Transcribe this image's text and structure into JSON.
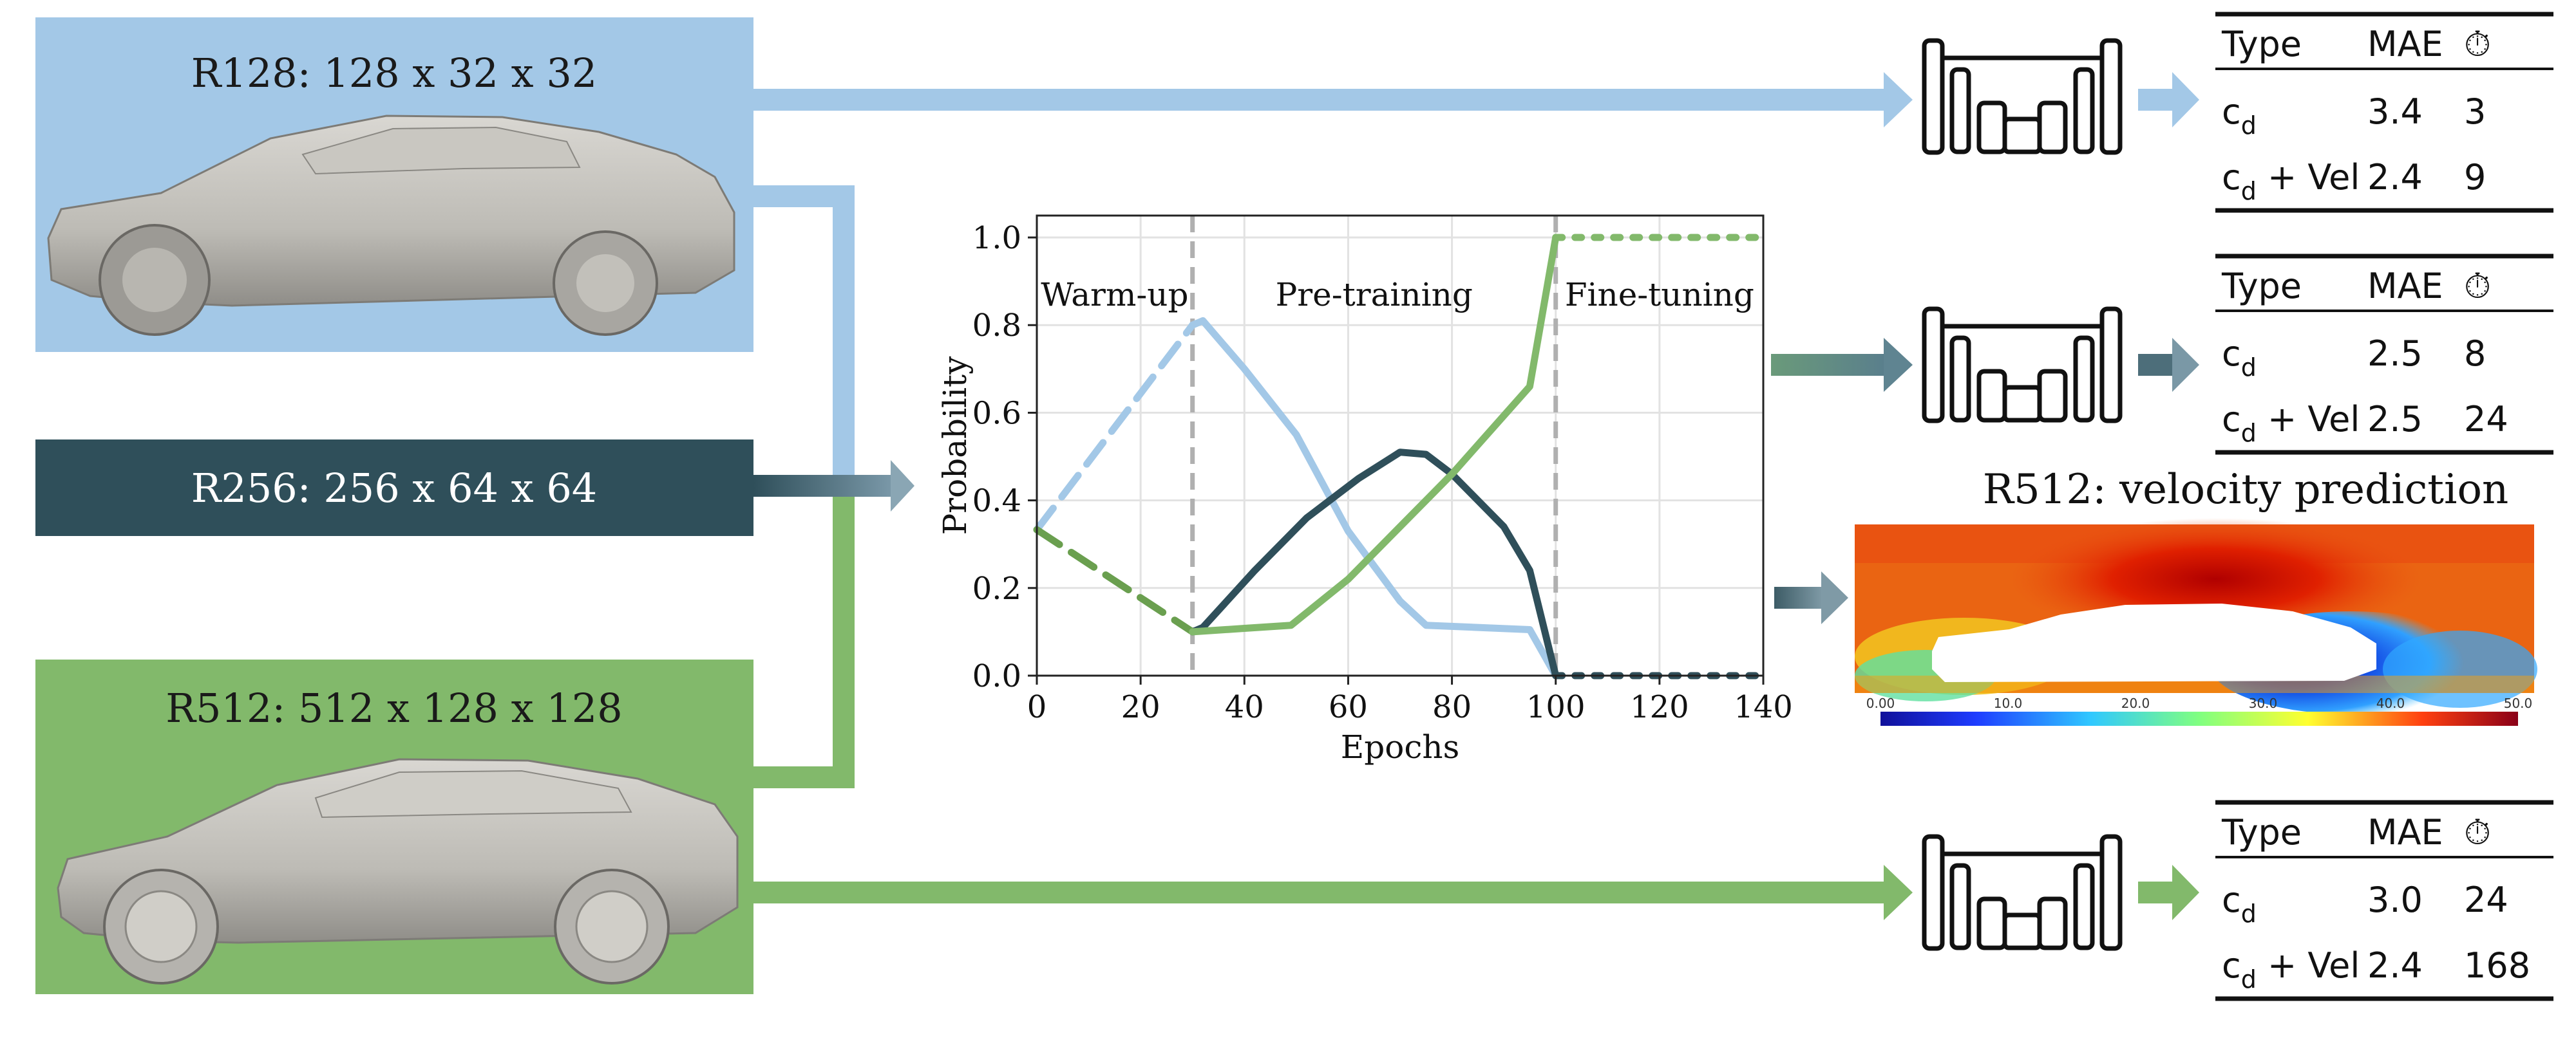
{
  "resolutions": {
    "r128": {
      "label": "R128: 128 x 32 x 32",
      "color": "#a3c8e7"
    },
    "r256": {
      "label": "R256: 256 x 64 x 64",
      "color": "#2f4f5a"
    },
    "r512": {
      "label": "R512: 512 x 128 x 128",
      "color": "#82b96b"
    }
  },
  "tables": [
    {
      "headers": [
        "Type",
        "MAE",
        "⏱"
      ],
      "rows": [
        {
          "type_base": "c",
          "type_sub": "d",
          "type_suffix": "",
          "mae": "3.4",
          "time": "3"
        },
        {
          "type_base": "c",
          "type_sub": "d",
          "type_suffix": " + Vel",
          "mae": "2.4",
          "time": "9"
        }
      ]
    },
    {
      "headers": [
        "Type",
        "MAE",
        "⏱"
      ],
      "rows": [
        {
          "type_base": "c",
          "type_sub": "d",
          "type_suffix": "",
          "mae": "2.5",
          "time": "8"
        },
        {
          "type_base": "c",
          "type_sub": "d",
          "type_suffix": " + Vel",
          "mae": "2.5",
          "time": "24"
        }
      ]
    },
    {
      "headers": [
        "Type",
        "MAE",
        "⏱"
      ],
      "rows": [
        {
          "type_base": "c",
          "type_sub": "d",
          "type_suffix": "",
          "mae": "3.0",
          "time": "24"
        },
        {
          "type_base": "c",
          "type_sub": "d",
          "type_suffix": " + Vel",
          "mae": "2.4",
          "time": "168"
        }
      ]
    }
  ],
  "velocity": {
    "title": "R512: velocity prediction",
    "colorbar_ticks": [
      "0.00",
      "10.0",
      "20.0",
      "30.0",
      "40.0",
      "50.0"
    ]
  },
  "chart_data": {
    "type": "line",
    "xlabel": "Epochs",
    "ylabel": "Probability",
    "xlim": [
      0,
      140
    ],
    "ylim": [
      0,
      1.05
    ],
    "xticks": [
      0,
      20,
      40,
      60,
      80,
      100,
      120,
      140
    ],
    "yticks": [
      "0.0",
      "0.2",
      "0.4",
      "0.6",
      "0.8",
      "1.0"
    ],
    "grid": true,
    "phase_lines": [
      30,
      100
    ],
    "phases": [
      {
        "label": "Warm-up",
        "x": 15
      },
      {
        "label": "Pre-training",
        "x": 65
      },
      {
        "label": "Fine-tuning",
        "x": 120
      }
    ],
    "series": [
      {
        "color": "#a3c8e7",
        "segments": [
          {
            "style": "dashed",
            "points": [
              [
                0,
                0.333
              ],
              [
                30,
                0.8
              ]
            ]
          },
          {
            "style": "solid",
            "points": [
              [
                30,
                0.8
              ],
              [
                32,
                0.81
              ],
              [
                40,
                0.7
              ],
              [
                50,
                0.55
              ],
              [
                60,
                0.33
              ],
              [
                70,
                0.17
              ],
              [
                75,
                0.115
              ],
              [
                85,
                0.11
              ],
              [
                95,
                0.105
              ],
              [
                100,
                0.0
              ]
            ]
          }
        ]
      },
      {
        "color": "#2f4f5a",
        "segments": [
          {
            "style": "solid",
            "points": [
              [
                30,
                0.1
              ],
              [
                32,
                0.11
              ],
              [
                42,
                0.24
              ],
              [
                52,
                0.36
              ],
              [
                62,
                0.45
              ],
              [
                70,
                0.51
              ],
              [
                75,
                0.505
              ],
              [
                80,
                0.46
              ],
              [
                90,
                0.34
              ],
              [
                95,
                0.24
              ],
              [
                100,
                0.0
              ]
            ]
          },
          {
            "style": "dotted",
            "points": [
              [
                100,
                0.0
              ],
              [
                140,
                0.0
              ]
            ]
          }
        ]
      },
      {
        "color": "#6a9f4f",
        "segments": [
          {
            "style": "dashed",
            "points": [
              [
                0,
                0.333
              ],
              [
                30,
                0.1
              ]
            ]
          }
        ]
      },
      {
        "color": "#82b96b",
        "segments": [
          {
            "style": "solid",
            "points": [
              [
                30,
                0.1
              ],
              [
                40,
                0.108
              ],
              [
                49,
                0.115
              ],
              [
                60,
                0.22
              ],
              [
                70,
                0.34
              ],
              [
                80,
                0.46
              ],
              [
                95,
                0.66
              ],
              [
                100,
                1.0
              ]
            ]
          },
          {
            "style": "dotted",
            "points": [
              [
                100,
                1.0
              ],
              [
                140,
                1.0
              ]
            ]
          }
        ]
      }
    ]
  }
}
